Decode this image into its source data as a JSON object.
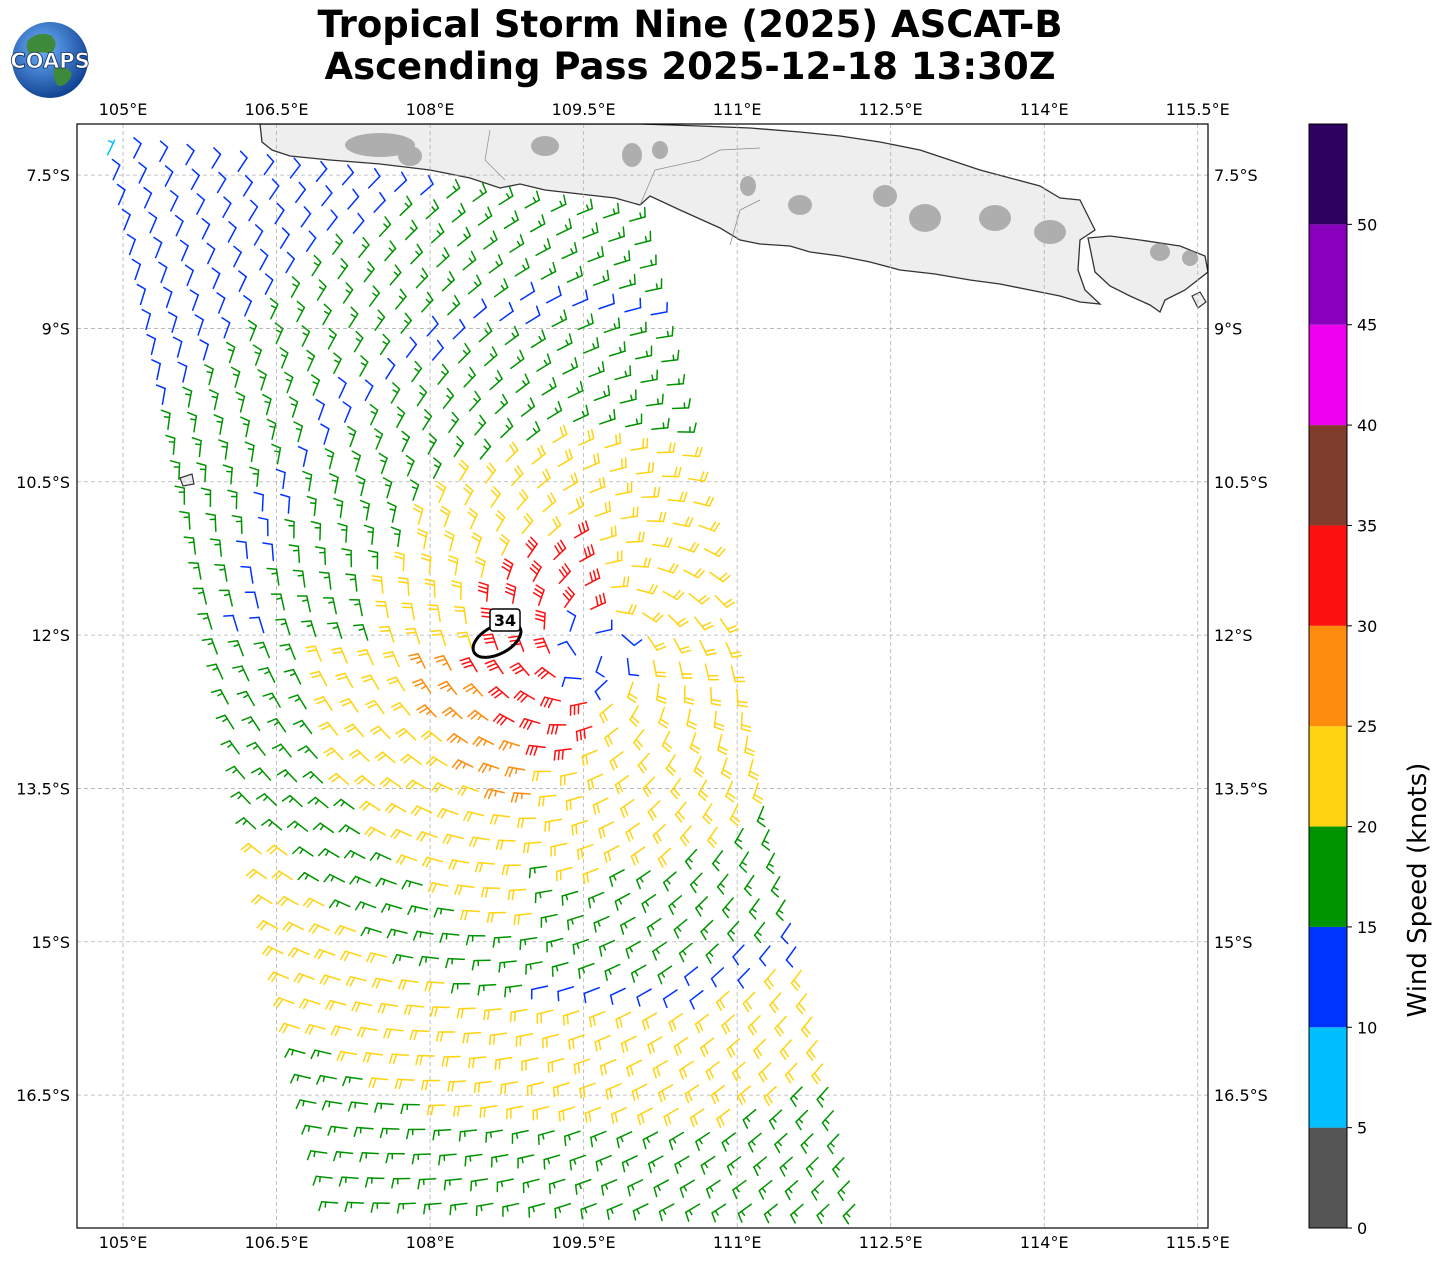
{
  "title": {
    "line1": "Tropical Storm Nine (2025) ASCAT-B",
    "line2": "Ascending Pass 2025-12-18 13:30Z"
  },
  "logo": {
    "text": "COAPS",
    "icon": "globe-logo-icon"
  },
  "map": {
    "lon_labels": [
      "105°E",
      "106.5°E",
      "108°E",
      "109.5°E",
      "111°E",
      "112.5°E",
      "114°E",
      "115.5°E"
    ],
    "lon_values": [
      105,
      106.5,
      108,
      109.5,
      111,
      112.5,
      114,
      115.5
    ],
    "lat_labels": [
      "7.5°S",
      "9°S",
      "10.5°S",
      "12°S",
      "13.5°S",
      "15°S",
      "16.5°S"
    ],
    "lat_values": [
      -7.5,
      -9,
      -10.5,
      -12,
      -13.5,
      -15,
      -16.5
    ],
    "extent": {
      "lon_min": 104.55,
      "lon_max": 115.6,
      "lat_max": -7.0,
      "lat_min": -17.8
    },
    "grid": true,
    "land_color": "#f2f2f2",
    "ocean_color": "#ffffff",
    "storm_center": {
      "lon": 109.6,
      "lat": -12.15
    },
    "wind_radius_label": "34",
    "swath": {
      "top_edge_west": {
        "lon": 104.85,
        "lat": -7.3
      },
      "top_edge_east": {
        "lon": 109.95,
        "lat": -7.95
      },
      "bottom_edge_west": {
        "lon": 107.15,
        "lat": -17.8
      },
      "bottom_edge_east": {
        "lon": 112.2,
        "lat": -17.8
      }
    }
  },
  "colorbar": {
    "label": "Wind Speed (knots)",
    "tick_labels": [
      "0",
      "5",
      "10",
      "15",
      "20",
      "25",
      "30",
      "35",
      "40",
      "45",
      "50"
    ],
    "bins": [
      {
        "min": 0,
        "max": 5,
        "color": "#555555"
      },
      {
        "min": 5,
        "max": 10,
        "color": "#00bfff"
      },
      {
        "min": 10,
        "max": 15,
        "color": "#0033ff"
      },
      {
        "min": 15,
        "max": 20,
        "color": "#009400"
      },
      {
        "min": 20,
        "max": 25,
        "color": "#ffd30f"
      },
      {
        "min": 25,
        "max": 30,
        "color": "#ff8c0c"
      },
      {
        "min": 30,
        "max": 35,
        "color": "#ff1010"
      },
      {
        "min": 35,
        "max": 40,
        "color": "#803c2c"
      },
      {
        "min": 40,
        "max": 45,
        "color": "#f000f0"
      },
      {
        "min": 45,
        "max": 50,
        "color": "#8800bb"
      },
      {
        "min": 50,
        "max": 55,
        "color": "#2e0060"
      }
    ]
  }
}
